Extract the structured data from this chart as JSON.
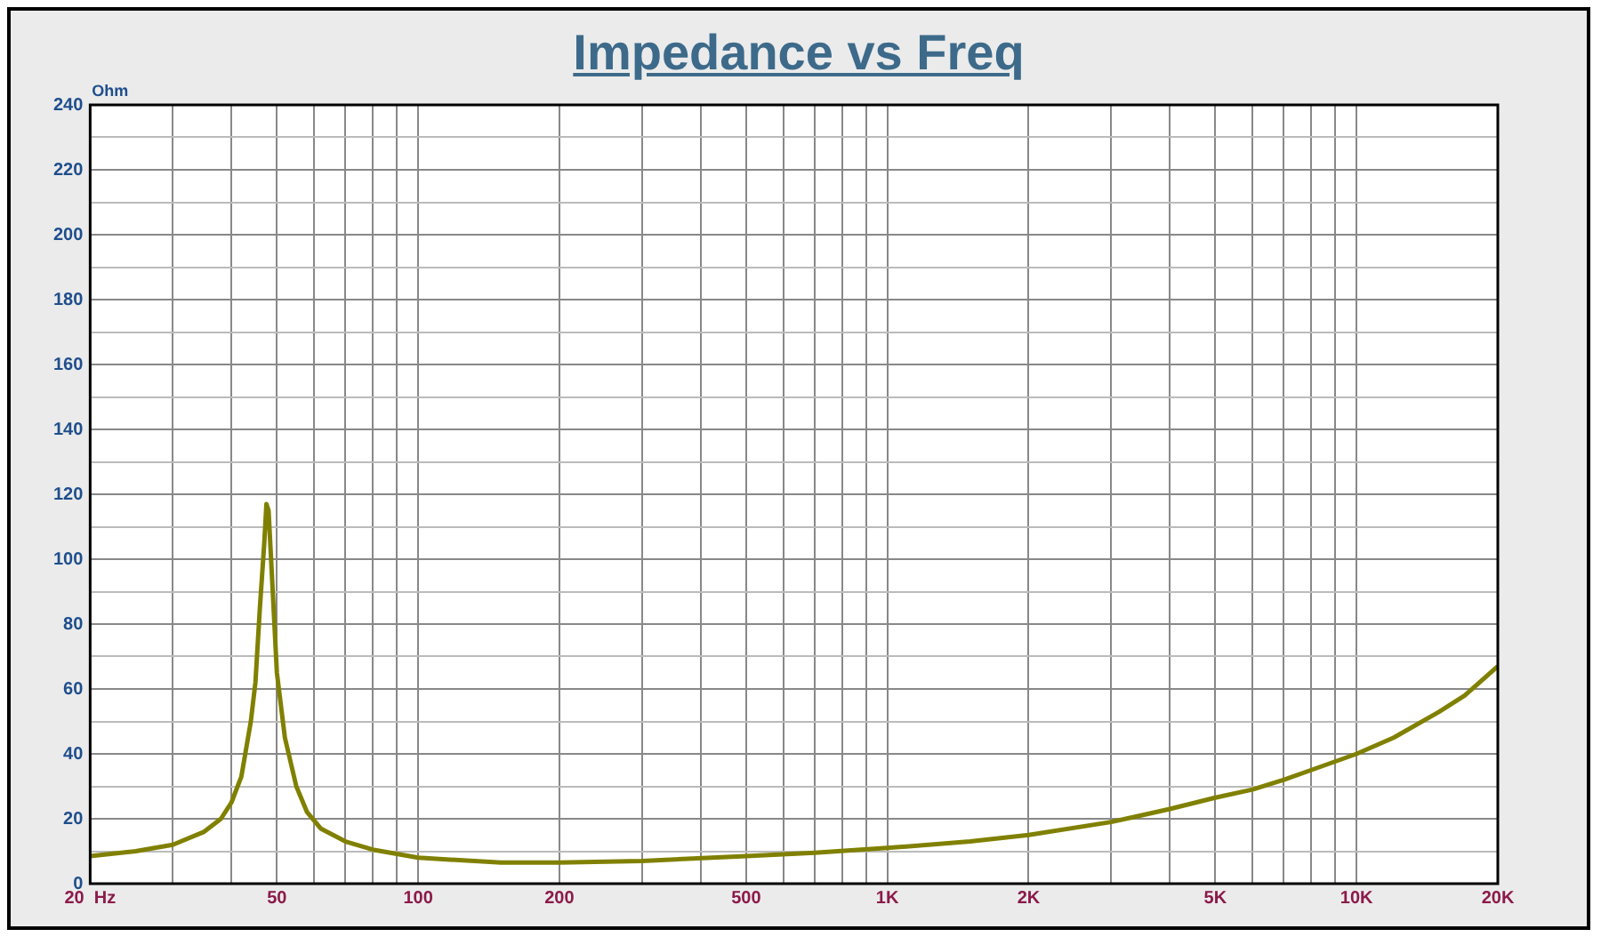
{
  "chart_data": {
    "type": "line",
    "title": "Impedance vs Freq",
    "ylabel": "Ohm",
    "log": "x",
    "grid": true,
    "legend": false,
    "marker": "none",
    "line_style": "solid",
    "xlim": [
      20,
      20000
    ],
    "ylim": [
      0,
      240
    ],
    "xticks": [
      {
        "value": 20,
        "label": "20  Hz"
      },
      {
        "value": 30,
        "label": null
      },
      {
        "value": 40,
        "label": null
      },
      {
        "value": 50,
        "label": "50"
      },
      {
        "value": 60,
        "label": null
      },
      {
        "value": 70,
        "label": null
      },
      {
        "value": 80,
        "label": null
      },
      {
        "value": 90,
        "label": null
      },
      {
        "value": 100,
        "label": "100"
      },
      {
        "value": 200,
        "label": "200"
      },
      {
        "value": 300,
        "label": null
      },
      {
        "value": 400,
        "label": null
      },
      {
        "value": 500,
        "label": "500"
      },
      {
        "value": 600,
        "label": null
      },
      {
        "value": 700,
        "label": null
      },
      {
        "value": 800,
        "label": null
      },
      {
        "value": 900,
        "label": null
      },
      {
        "value": 1000,
        "label": "1K"
      },
      {
        "value": 2000,
        "label": "2K"
      },
      {
        "value": 3000,
        "label": null
      },
      {
        "value": 4000,
        "label": null
      },
      {
        "value": 5000,
        "label": "5K"
      },
      {
        "value": 6000,
        "label": null
      },
      {
        "value": 7000,
        "label": null
      },
      {
        "value": 8000,
        "label": null
      },
      {
        "value": 9000,
        "label": null
      },
      {
        "value": 10000,
        "label": "10K"
      },
      {
        "value": 20000,
        "label": "20K"
      }
    ],
    "yticks": [
      0,
      {
        "value": 10,
        "label": null
      },
      20,
      {
        "value": 30,
        "label": null
      },
      40,
      {
        "value": 50,
        "label": null
      },
      60,
      {
        "value": 70,
        "label": null
      },
      80,
      {
        "value": 90,
        "label": null
      },
      100,
      {
        "value": 110,
        "label": null
      },
      120,
      {
        "value": 130,
        "label": null
      },
      140,
      {
        "value": 150,
        "label": null
      },
      160,
      {
        "value": 170,
        "label": null
      },
      180,
      {
        "value": 190,
        "label": null
      },
      200,
      {
        "value": 210,
        "label": null
      },
      220,
      {
        "value": 230,
        "label": null
      },
      240
    ],
    "x": [
      20,
      25,
      30,
      35,
      38,
      40,
      42,
      44,
      45,
      46,
      47,
      47.5,
      48,
      49,
      50,
      52,
      55,
      58,
      62,
      70,
      80,
      100,
      150,
      200,
      300,
      500,
      700,
      1000,
      1500,
      2000,
      3000,
      4000,
      5000,
      6000,
      7000,
      8000,
      10000,
      12000,
      15000,
      17000,
      20000
    ],
    "series": [
      {
        "color": "#808000",
        "values": [
          8.5,
          10,
          12,
          16,
          20,
          25,
          33,
          50,
          62,
          85,
          105,
          117,
          115,
          90,
          65,
          45,
          30,
          22,
          17,
          13,
          10.5,
          8,
          6.5,
          6.5,
          7,
          8.5,
          9.5,
          11,
          13,
          15,
          19,
          23,
          26.5,
          29,
          32,
          35,
          40,
          45,
          53,
          58,
          67
        ]
      }
    ]
  }
}
